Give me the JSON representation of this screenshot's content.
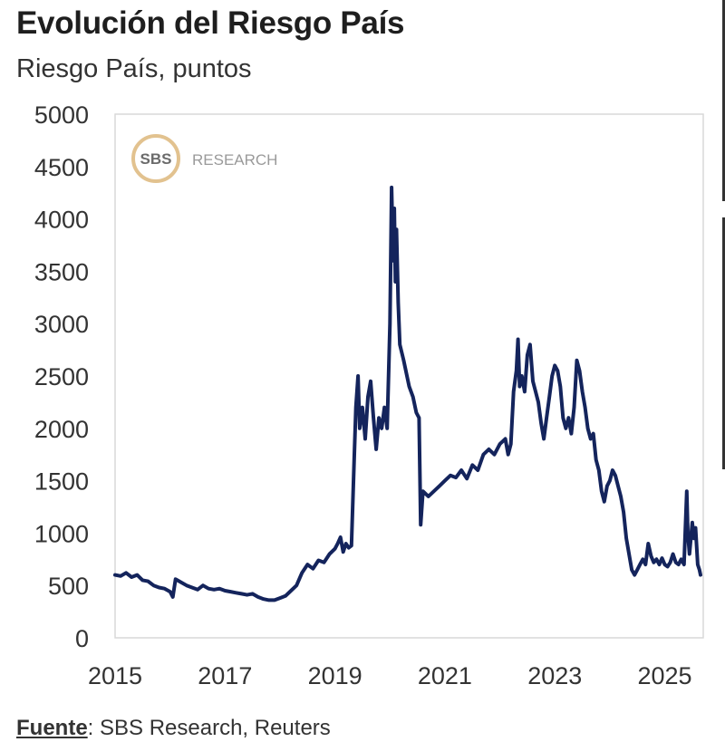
{
  "title": "Evolución del Riesgo País",
  "subtitle": "Riesgo País, puntos",
  "logo": {
    "badge": "SBS",
    "text": "RESEARCH",
    "ring_color": "#d8b27a"
  },
  "source": {
    "label": "Fuente",
    "text": ": SBS Research, Reuters"
  },
  "colors": {
    "line": "#14245c",
    "frame": "#d9d9d9"
  },
  "chart_data": {
    "type": "line",
    "title": "Evolución del Riesgo País",
    "ylabel": "Riesgo País, puntos",
    "xlabel": "",
    "ylim": [
      0,
      5000
    ],
    "xlim": [
      2015.0,
      2025.7
    ],
    "yticks": [
      0,
      500,
      1000,
      1500,
      2000,
      2500,
      3000,
      3500,
      4000,
      4500,
      5000
    ],
    "xticks": [
      2015,
      2017,
      2019,
      2021,
      2023,
      2025
    ],
    "grid": false,
    "series": [
      {
        "values": [
          [
            2015.0,
            600
          ],
          [
            2015.1,
            590
          ],
          [
            2015.2,
            620
          ],
          [
            2015.3,
            580
          ],
          [
            2015.4,
            600
          ],
          [
            2015.5,
            550
          ],
          [
            2015.6,
            540
          ],
          [
            2015.7,
            500
          ],
          [
            2015.8,
            480
          ],
          [
            2015.9,
            470
          ],
          [
            2016.0,
            440
          ],
          [
            2016.05,
            390
          ],
          [
            2016.1,
            560
          ],
          [
            2016.2,
            530
          ],
          [
            2016.3,
            500
          ],
          [
            2016.4,
            480
          ],
          [
            2016.5,
            460
          ],
          [
            2016.6,
            500
          ],
          [
            2016.7,
            470
          ],
          [
            2016.8,
            460
          ],
          [
            2016.9,
            470
          ],
          [
            2017.0,
            450
          ],
          [
            2017.1,
            440
          ],
          [
            2017.2,
            430
          ],
          [
            2017.3,
            420
          ],
          [
            2017.4,
            410
          ],
          [
            2017.5,
            420
          ],
          [
            2017.6,
            390
          ],
          [
            2017.7,
            370
          ],
          [
            2017.8,
            360
          ],
          [
            2017.9,
            360
          ],
          [
            2018.0,
            380
          ],
          [
            2018.1,
            400
          ],
          [
            2018.2,
            450
          ],
          [
            2018.3,
            500
          ],
          [
            2018.4,
            620
          ],
          [
            2018.5,
            700
          ],
          [
            2018.6,
            660
          ],
          [
            2018.7,
            740
          ],
          [
            2018.8,
            720
          ],
          [
            2018.9,
            800
          ],
          [
            2019.0,
            850
          ],
          [
            2019.05,
            900
          ],
          [
            2019.1,
            960
          ],
          [
            2019.15,
            820
          ],
          [
            2019.2,
            900
          ],
          [
            2019.25,
            860
          ],
          [
            2019.3,
            880
          ],
          [
            2019.35,
            1700
          ],
          [
            2019.38,
            2200
          ],
          [
            2019.42,
            2500
          ],
          [
            2019.45,
            2000
          ],
          [
            2019.5,
            2200
          ],
          [
            2019.55,
            1900
          ],
          [
            2019.6,
            2300
          ],
          [
            2019.65,
            2450
          ],
          [
            2019.7,
            2100
          ],
          [
            2019.75,
            1800
          ],
          [
            2019.8,
            2100
          ],
          [
            2019.85,
            2000
          ],
          [
            2019.9,
            2200
          ],
          [
            2019.95,
            2000
          ],
          [
            2020.0,
            3000
          ],
          [
            2020.03,
            4300
          ],
          [
            2020.06,
            3600
          ],
          [
            2020.08,
            4100
          ],
          [
            2020.1,
            3400
          ],
          [
            2020.12,
            3900
          ],
          [
            2020.15,
            3200
          ],
          [
            2020.18,
            2800
          ],
          [
            2020.25,
            2650
          ],
          [
            2020.35,
            2400
          ],
          [
            2020.42,
            2300
          ],
          [
            2020.48,
            2150
          ],
          [
            2020.53,
            2100
          ],
          [
            2020.56,
            1080
          ],
          [
            2020.6,
            1400
          ],
          [
            2020.7,
            1350
          ],
          [
            2020.8,
            1400
          ],
          [
            2020.9,
            1450
          ],
          [
            2021.0,
            1500
          ],
          [
            2021.1,
            1550
          ],
          [
            2021.2,
            1530
          ],
          [
            2021.3,
            1600
          ],
          [
            2021.4,
            1520
          ],
          [
            2021.5,
            1650
          ],
          [
            2021.6,
            1600
          ],
          [
            2021.7,
            1750
          ],
          [
            2021.8,
            1800
          ],
          [
            2021.9,
            1750
          ],
          [
            2022.0,
            1850
          ],
          [
            2022.1,
            1900
          ],
          [
            2022.15,
            1750
          ],
          [
            2022.2,
            1850
          ],
          [
            2022.25,
            2350
          ],
          [
            2022.3,
            2550
          ],
          [
            2022.33,
            2850
          ],
          [
            2022.36,
            2400
          ],
          [
            2022.4,
            2500
          ],
          [
            2022.45,
            2350
          ],
          [
            2022.5,
            2700
          ],
          [
            2022.55,
            2800
          ],
          [
            2022.6,
            2450
          ],
          [
            2022.65,
            2350
          ],
          [
            2022.7,
            2250
          ],
          [
            2022.75,
            2050
          ],
          [
            2022.8,
            1900
          ],
          [
            2022.85,
            2100
          ],
          [
            2022.9,
            2300
          ],
          [
            2022.95,
            2500
          ],
          [
            2023.0,
            2600
          ],
          [
            2023.05,
            2550
          ],
          [
            2023.1,
            2400
          ],
          [
            2023.15,
            2100
          ],
          [
            2023.2,
            2000
          ],
          [
            2023.25,
            2100
          ],
          [
            2023.3,
            1950
          ],
          [
            2023.35,
            2200
          ],
          [
            2023.4,
            2650
          ],
          [
            2023.45,
            2550
          ],
          [
            2023.5,
            2350
          ],
          [
            2023.55,
            2200
          ],
          [
            2023.6,
            2000
          ],
          [
            2023.65,
            1900
          ],
          [
            2023.7,
            1950
          ],
          [
            2023.75,
            1700
          ],
          [
            2023.8,
            1600
          ],
          [
            2023.85,
            1400
          ],
          [
            2023.9,
            1300
          ],
          [
            2023.95,
            1450
          ],
          [
            2024.0,
            1500
          ],
          [
            2024.05,
            1600
          ],
          [
            2024.1,
            1550
          ],
          [
            2024.15,
            1450
          ],
          [
            2024.2,
            1350
          ],
          [
            2024.25,
            1200
          ],
          [
            2024.3,
            950
          ],
          [
            2024.35,
            800
          ],
          [
            2024.4,
            650
          ],
          [
            2024.45,
            600
          ],
          [
            2024.5,
            650
          ],
          [
            2024.55,
            700
          ],
          [
            2024.6,
            750
          ],
          [
            2024.65,
            700
          ],
          [
            2024.7,
            900
          ],
          [
            2024.75,
            780
          ],
          [
            2024.8,
            720
          ],
          [
            2024.85,
            750
          ],
          [
            2024.9,
            700
          ],
          [
            2024.95,
            760
          ],
          [
            2025.0,
            700
          ],
          [
            2025.05,
            680
          ],
          [
            2025.1,
            720
          ],
          [
            2025.15,
            800
          ],
          [
            2025.2,
            720
          ],
          [
            2025.25,
            700
          ],
          [
            2025.3,
            750
          ],
          [
            2025.35,
            700
          ],
          [
            2025.4,
            1400
          ],
          [
            2025.42,
            1000
          ],
          [
            2025.45,
            800
          ],
          [
            2025.5,
            1100
          ],
          [
            2025.53,
            950
          ],
          [
            2025.56,
            1050
          ],
          [
            2025.6,
            700
          ],
          [
            2025.63,
            650
          ],
          [
            2025.65,
            600
          ]
        ]
      }
    ]
  }
}
